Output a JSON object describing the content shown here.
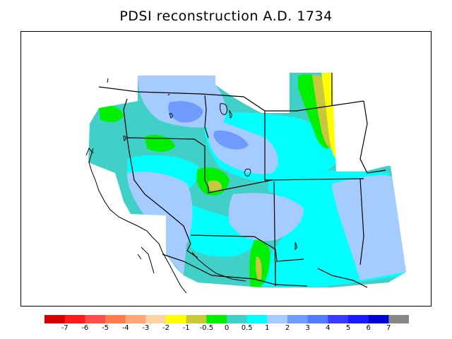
{
  "title": "PDSI reconstruction A.D. 1734",
  "legend": {
    "colors": [
      "#d40000",
      "#ff1a1a",
      "#ff4d4d",
      "#ff7a4d",
      "#ffa877",
      "#ffd2a6",
      "#ffff00",
      "#c8c83c",
      "#00f000",
      "#40d0c8",
      "#00ffff",
      "#a6ccff",
      "#6f9bff",
      "#4f7cff",
      "#3a3aff",
      "#1a1aff",
      "#0000d0",
      "#888888"
    ],
    "labels": [
      "-7",
      "-6",
      "-5",
      "-4",
      "-3",
      "-2",
      "-1",
      "-0.5",
      "0",
      "0.5",
      "1",
      "2",
      "3",
      "4",
      "5",
      "6",
      "7"
    ]
  }
}
